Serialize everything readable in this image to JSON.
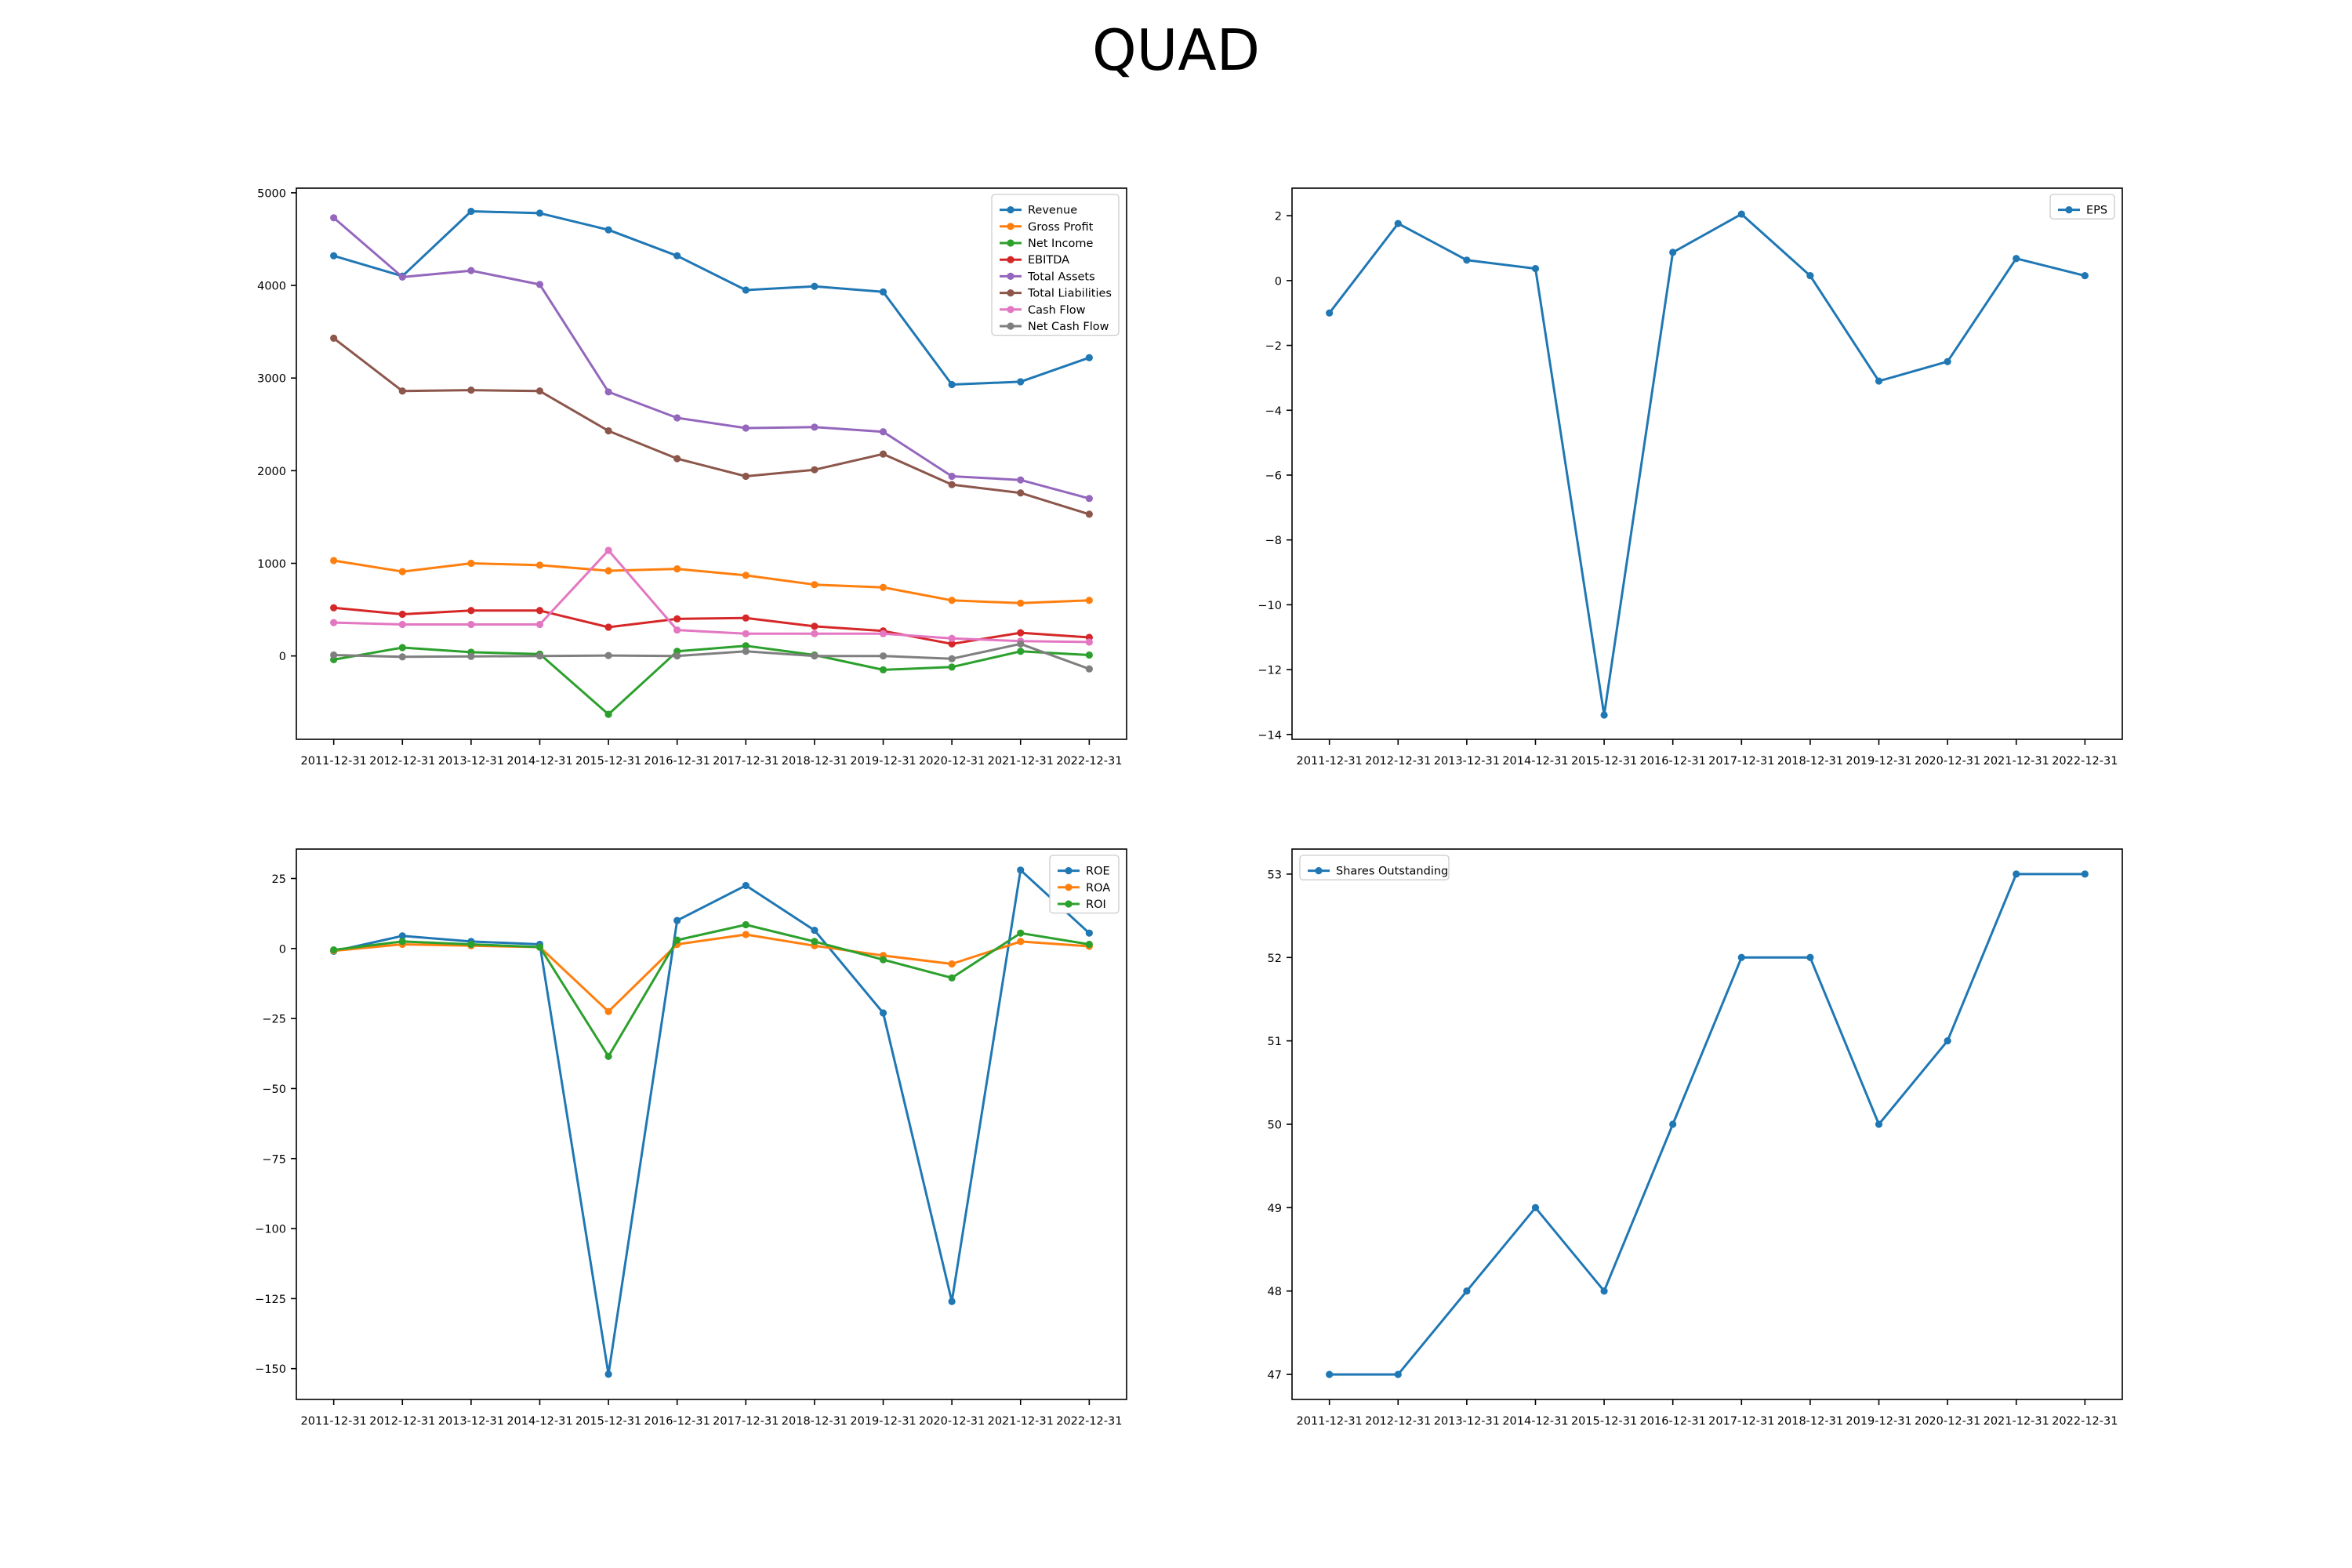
{
  "title": "QUAD",
  "chart_data": [
    {
      "type": "line",
      "x": [
        "2011-12-31",
        "2012-12-31",
        "2013-12-31",
        "2014-12-31",
        "2015-12-31",
        "2016-12-31",
        "2017-12-31",
        "2018-12-31",
        "2019-12-31",
        "2020-12-31",
        "2021-12-31",
        "2022-12-31"
      ],
      "ylim": [
        -900,
        5050
      ],
      "yticks": [
        0,
        1000,
        2000,
        3000,
        4000,
        5000
      ],
      "legend": "top-right",
      "series": [
        {
          "name": "Revenue",
          "color": "#1f77b4",
          "values": [
            4320,
            4100,
            4800,
            4780,
            4600,
            4320,
            3950,
            3990,
            3930,
            2930,
            2960,
            3220
          ]
        },
        {
          "name": "Gross Profit",
          "color": "#ff7f0e",
          "values": [
            1030,
            910,
            1000,
            980,
            920,
            940,
            870,
            770,
            740,
            600,
            570,
            600
          ]
        },
        {
          "name": "Net Income",
          "color": "#2ca02c",
          "values": [
            -40,
            90,
            40,
            20,
            -630,
            50,
            110,
            10,
            -150,
            -120,
            50,
            10
          ]
        },
        {
          "name": "EBITDA",
          "color": "#d62728",
          "values": [
            520,
            450,
            490,
            490,
            310,
            400,
            410,
            320,
            270,
            130,
            250,
            200
          ]
        },
        {
          "name": "Total Assets",
          "color": "#9467bd",
          "values": [
            4730,
            4090,
            4160,
            4010,
            2850,
            2570,
            2460,
            2470,
            2420,
            1940,
            1900,
            1700
          ]
        },
        {
          "name": "Total Liabilities",
          "color": "#8c564b",
          "values": [
            3430,
            2860,
            2870,
            2860,
            2430,
            2130,
            1940,
            2010,
            2180,
            1850,
            1760,
            1530
          ]
        },
        {
          "name": "Cash Flow",
          "color": "#e377c2",
          "values": [
            360,
            340,
            340,
            340,
            1140,
            280,
            240,
            240,
            240,
            190,
            160,
            150
          ]
        },
        {
          "name": "Net Cash Flow",
          "color": "#7f7f7f",
          "values": [
            10,
            -10,
            -5,
            0,
            5,
            0,
            50,
            0,
            0,
            -30,
            130,
            -140
          ]
        }
      ]
    },
    {
      "type": "line",
      "x": [
        "2011-12-31",
        "2012-12-31",
        "2013-12-31",
        "2014-12-31",
        "2015-12-31",
        "2016-12-31",
        "2017-12-31",
        "2018-12-31",
        "2019-12-31",
        "2020-12-31",
        "2021-12-31",
        "2022-12-31"
      ],
      "ylim": [
        -14.15,
        2.85
      ],
      "yticks": [
        -14,
        -12,
        -10,
        -8,
        -6,
        -4,
        -2,
        0,
        2
      ],
      "legend": "top-right",
      "series": [
        {
          "name": "EPS",
          "color": "#1f77b4",
          "values": [
            -1.0,
            1.76,
            0.63,
            0.37,
            -13.4,
            0.87,
            2.05,
            0.15,
            -3.1,
            -2.5,
            0.68,
            0.15
          ]
        }
      ]
    },
    {
      "type": "line",
      "x": [
        "2011-12-31",
        "2012-12-31",
        "2013-12-31",
        "2014-12-31",
        "2015-12-31",
        "2016-12-31",
        "2017-12-31",
        "2018-12-31",
        "2019-12-31",
        "2020-12-31",
        "2021-12-31",
        "2022-12-31"
      ],
      "ylim": [
        -161,
        35.5
      ],
      "yticks": [
        -150,
        -125,
        -100,
        -75,
        -50,
        -25,
        0,
        25
      ],
      "legend": "top-right",
      "series": [
        {
          "name": "ROE",
          "color": "#1f77b4",
          "values": [
            -1,
            4.5,
            2.5,
            1.5,
            -152,
            10,
            22.5,
            6.5,
            -23,
            -126,
            28,
            5.5
          ]
        },
        {
          "name": "ROA",
          "color": "#ff7f0e",
          "values": [
            -0.8,
            1.5,
            1.0,
            0.5,
            -22.5,
            1.5,
            5.0,
            1.0,
            -2.5,
            -5.5,
            2.5,
            0.8
          ]
        },
        {
          "name": "ROI",
          "color": "#2ca02c",
          "values": [
            -0.5,
            2.5,
            1.5,
            0.5,
            -38.5,
            3.0,
            8.5,
            2.5,
            -4.0,
            -10.5,
            5.5,
            1.5
          ]
        }
      ]
    },
    {
      "type": "line",
      "x": [
        "2011-12-31",
        "2012-12-31",
        "2013-12-31",
        "2014-12-31",
        "2015-12-31",
        "2016-12-31",
        "2017-12-31",
        "2018-12-31",
        "2019-12-31",
        "2020-12-31",
        "2021-12-31",
        "2022-12-31"
      ],
      "ylim": [
        46.7,
        53.3
      ],
      "yticks": [
        47,
        48,
        49,
        50,
        51,
        52,
        53
      ],
      "legend": "top-left",
      "series": [
        {
          "name": "Shares Outstanding",
          "color": "#1f77b4",
          "values": [
            47,
            47,
            48,
            49,
            48,
            50,
            52,
            52,
            50,
            51,
            53,
            53
          ]
        }
      ]
    }
  ]
}
